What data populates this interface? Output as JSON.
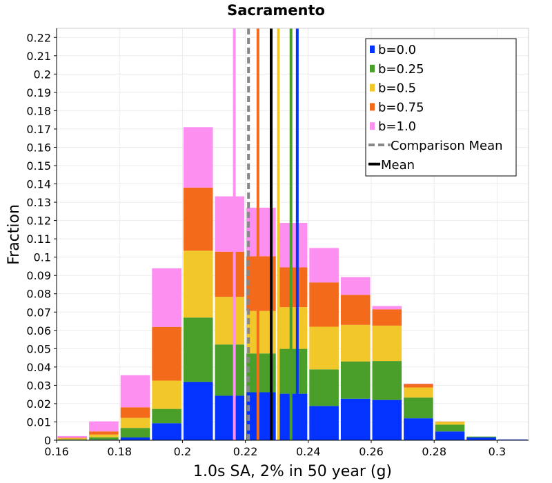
{
  "chart_data": {
    "type": "bar",
    "stacked": true,
    "title": "Sacramento",
    "xlabel": "1.0s SA, 2% in 50 year (g)",
    "ylabel": "Fraction",
    "xlim": [
      0.16,
      0.31
    ],
    "ylim": [
      0,
      0.225
    ],
    "bin_width": 0.01,
    "bin_centers": [
      0.165,
      0.175,
      0.185,
      0.195,
      0.205,
      0.215,
      0.225,
      0.235,
      0.245,
      0.255,
      0.265,
      0.275,
      0.285,
      0.295,
      0.305
    ],
    "x_ticks": [
      "0.16",
      "0.18",
      "0.2",
      "0.22",
      "0.24",
      "0.26",
      "0.28",
      "0.3"
    ],
    "y_ticks": [
      "0",
      "0.01",
      "0.02",
      "0.03",
      "0.04",
      "0.05",
      "0.06",
      "0.07",
      "0.08",
      "0.09",
      "0.1",
      "0.11",
      "0.12",
      "0.13",
      "0.14",
      "0.15",
      "0.16",
      "0.17",
      "0.18",
      "0.19",
      "0.2",
      "0.21",
      "0.22"
    ],
    "series": [
      {
        "name": "b=0.0",
        "color": "#0433ff",
        "values": [
          0.0002,
          0.0003,
          0.0015,
          0.0093,
          0.0318,
          0.0243,
          0.0262,
          0.0254,
          0.0187,
          0.0227,
          0.022,
          0.012,
          0.0048,
          0.0015,
          0.0004
        ]
      },
      {
        "name": "b=0.25",
        "color": "#4a9f2a",
        "values": [
          0.0003,
          0.0013,
          0.0052,
          0.0078,
          0.0352,
          0.028,
          0.0212,
          0.0245,
          0.02,
          0.0203,
          0.0213,
          0.0113,
          0.0037,
          0.0005,
          0.0
        ]
      },
      {
        "name": "b=0.5",
        "color": "#f2c72a",
        "values": [
          0.0005,
          0.0015,
          0.0055,
          0.0155,
          0.0365,
          0.026,
          0.0232,
          0.0228,
          0.0233,
          0.02,
          0.0193,
          0.0055,
          0.0015,
          0.0,
          0.0
        ]
      },
      {
        "name": "b=0.75",
        "color": "#f26a1a",
        "values": [
          0.0004,
          0.0017,
          0.0058,
          0.0293,
          0.0345,
          0.0247,
          0.0299,
          0.0217,
          0.0242,
          0.0164,
          0.0089,
          0.0019,
          0.0002,
          0.0,
          0.0
        ]
      },
      {
        "name": "b=1.0",
        "color": "#fc8ff0",
        "values": [
          0.0009,
          0.0055,
          0.0175,
          0.032,
          0.033,
          0.0302,
          0.0265,
          0.0243,
          0.0188,
          0.0097,
          0.0018,
          0.0002,
          0.0,
          0.0,
          0.0
        ]
      }
    ],
    "mean_lines": [
      {
        "name": "b=0.0",
        "x": 0.2365,
        "color": "#0433ff",
        "style": "solid"
      },
      {
        "name": "b=0.25",
        "x": 0.2345,
        "color": "#4a9f2a",
        "style": "solid"
      },
      {
        "name": "b=0.5",
        "x": 0.2305,
        "color": "#f2c72a",
        "style": "solid"
      },
      {
        "name": "b=0.75",
        "x": 0.224,
        "color": "#f26a1a",
        "style": "solid"
      },
      {
        "name": "b=1.0",
        "x": 0.2165,
        "color": "#fc8ff0",
        "style": "solid"
      },
      {
        "name": "Comparison Mean",
        "x": 0.221,
        "color": "#888888",
        "style": "dashed"
      },
      {
        "name": "Mean",
        "x": 0.2282,
        "color": "#000000",
        "style": "solid"
      }
    ],
    "legend": {
      "position": "top-right",
      "entries": [
        {
          "label": "b=0.0",
          "color": "#0433ff",
          "kind": "box"
        },
        {
          "label": "b=0.25",
          "color": "#4a9f2a",
          "kind": "box"
        },
        {
          "label": "b=0.5",
          "color": "#f2c72a",
          "kind": "box"
        },
        {
          "label": "b=0.75",
          "color": "#f26a1a",
          "kind": "box"
        },
        {
          "label": "b=1.0",
          "color": "#fc8ff0",
          "kind": "box"
        },
        {
          "label": "Comparison Mean",
          "color": "#888888",
          "kind": "dashed-line"
        },
        {
          "label": "Mean",
          "color": "#000000",
          "kind": "line"
        }
      ]
    },
    "grid": true
  }
}
